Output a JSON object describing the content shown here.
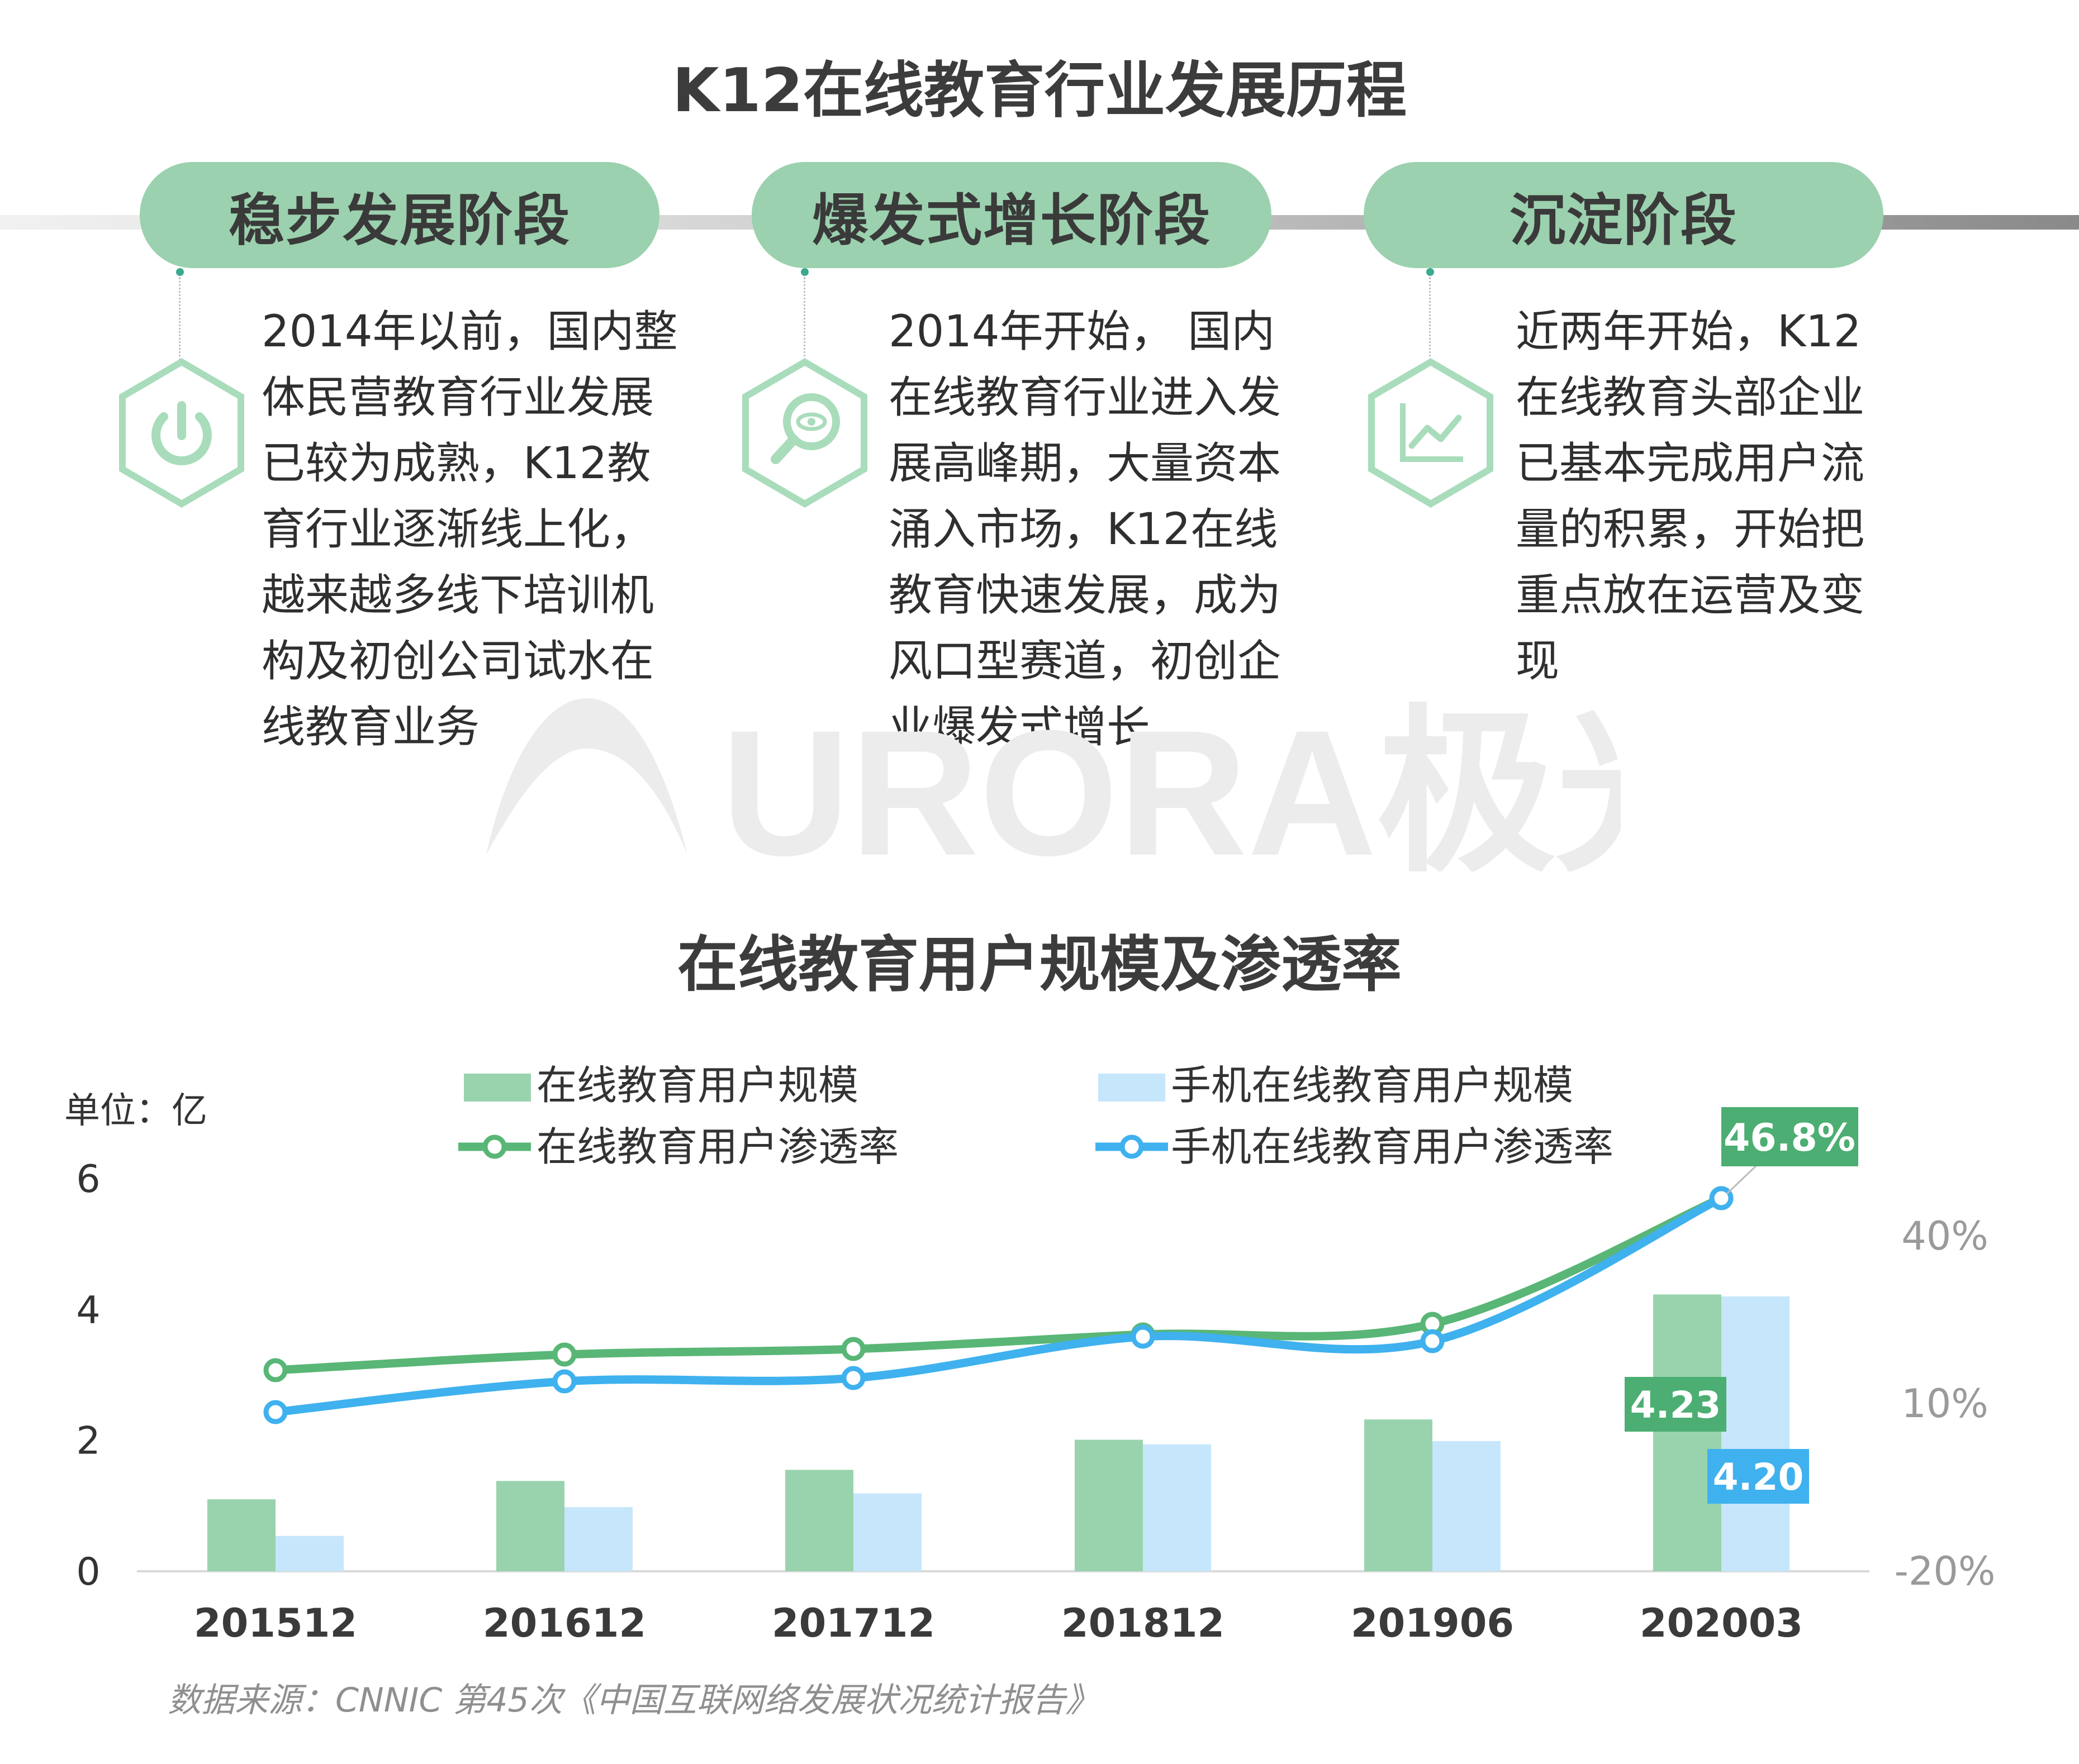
{
  "page_title": "K12在线教育行业发展历程",
  "stages": [
    {
      "name": "稳步发展阶段",
      "icon": "power-icon",
      "lines": [
        "2014年以前，国内整",
        "体民营教育行业发展",
        "已较为成熟，K12教",
        "育行业逐渐线上化，",
        "越来越多线下培训机",
        "构及初创公司试水在",
        "线教育业务"
      ]
    },
    {
      "name": "爆发式增长阶段",
      "icon": "magnifier-eye-icon",
      "lines": [
        "2014年开始， 国内",
        "在线教育行业进入发",
        "展高峰期，大量资本",
        "涌入市场，K12在线",
        "教育快速发展，成为",
        "风口型赛道，初创企",
        "业爆发式增长"
      ]
    },
    {
      "name": "沉淀阶段",
      "icon": "line-chart-icon",
      "lines": [
        "近两年开始，K12",
        "在线教育头部企业",
        "已基本完成用户流",
        "量的积累，开始把",
        "重点放在运营及变",
        "现"
      ]
    }
  ],
  "watermark": "URORA极光",
  "chart_title": "在线教育用户规模及渗透率",
  "source": "数据来源：CNNIC 第45次《中国互联网络发展状况统计报告》",
  "colors": {
    "green_bar": "#99d3ad",
    "blue_bar": "#c6e6fb",
    "green_line": "#59b676",
    "blue_line": "#3fb1ee",
    "label_green": "#4cae72",
    "label_blue": "#3fb1ee",
    "pill": "#9bd1ae"
  },
  "chart_data": {
    "type": "bar",
    "categories": [
      "201512",
      "201612",
      "201712",
      "201812",
      "201906",
      "202003"
    ],
    "y_unit_label": "单位：亿",
    "y_left": {
      "min": 0,
      "max": 6,
      "ticks": [
        "0",
        "2",
        "4",
        "6"
      ]
    },
    "y_right": {
      "min": -20,
      "max": 40,
      "ticks": [
        "-20%",
        "10%",
        "40%"
      ]
    },
    "series": [
      {
        "name": "在线教育用户规模",
        "kind": "bar",
        "axis": "left",
        "values": [
          1.1,
          1.38,
          1.55,
          2.01,
          2.32,
          4.23
        ]
      },
      {
        "name": "手机在线教育用户规模",
        "kind": "bar",
        "axis": "left",
        "values": [
          0.54,
          0.98,
          1.19,
          1.94,
          1.99,
          4.2
        ]
      },
      {
        "name": "在线教育用户渗透率",
        "kind": "line",
        "axis": "right",
        "values": [
          16.0,
          18.8,
          19.8,
          22.4,
          24.3,
          46.8
        ]
      },
      {
        "name": "手机在线教育用户渗透率",
        "kind": "line",
        "axis": "right",
        "values": [
          8.5,
          14.0,
          14.6,
          22.0,
          21.2,
          46.8
        ]
      }
    ],
    "data_labels": {
      "green_bar_last": "4.23",
      "blue_bar_last": "4.20",
      "line_last": "46.8%"
    },
    "grid": false,
    "legend_position": "top"
  }
}
